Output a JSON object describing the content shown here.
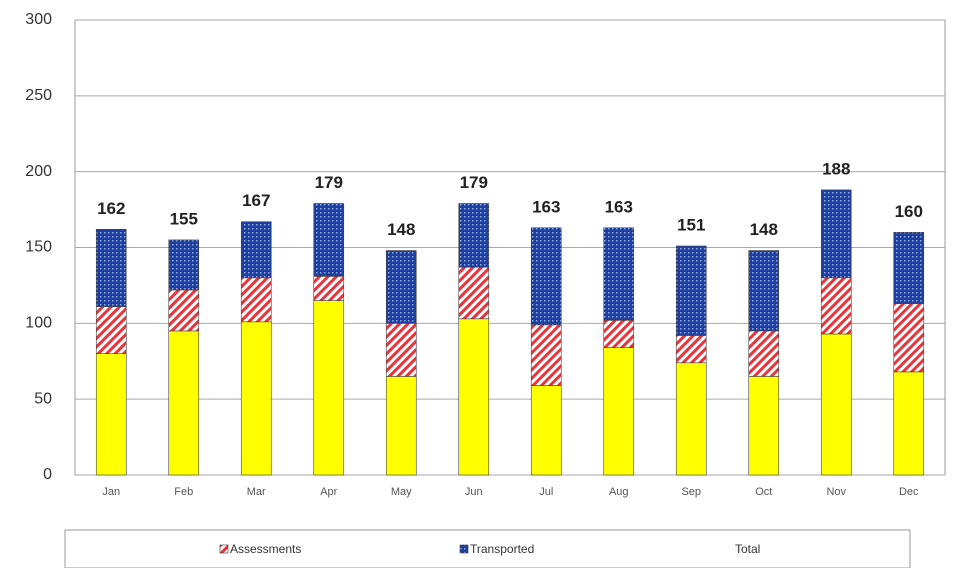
{
  "chart_data": {
    "type": "stacked_bar",
    "categories": [
      "Jan",
      "Feb",
      "Mar",
      "Apr",
      "May",
      "Jun",
      "Jul",
      "Aug",
      "Sep",
      "Oct",
      "Nov",
      "Dec"
    ],
    "series": [
      {
        "color": "#ffff00",
        "values": [
          80,
          95,
          101,
          115,
          65,
          103,
          59,
          84,
          74,
          65,
          93,
          68
        ]
      },
      {
        "name": "Assessments",
        "color": "#e8343a",
        "values": [
          31,
          27,
          29,
          16,
          35,
          34,
          40,
          18,
          18,
          30,
          37,
          45
        ]
      },
      {
        "name": "Transported",
        "color": "#1f3f9e",
        "values": [
          51,
          33,
          37,
          48,
          48,
          42,
          64,
          61,
          59,
          53,
          58,
          47
        ]
      }
    ],
    "totals": {
      "name": "Total",
      "values": [
        162,
        155,
        167,
        179,
        148,
        179,
        163,
        163,
        151,
        148,
        188,
        160
      ]
    },
    "ylim": [
      0,
      300
    ],
    "yticks": [
      0,
      50,
      100,
      150,
      200,
      250,
      300
    ],
    "grid": true
  }
}
